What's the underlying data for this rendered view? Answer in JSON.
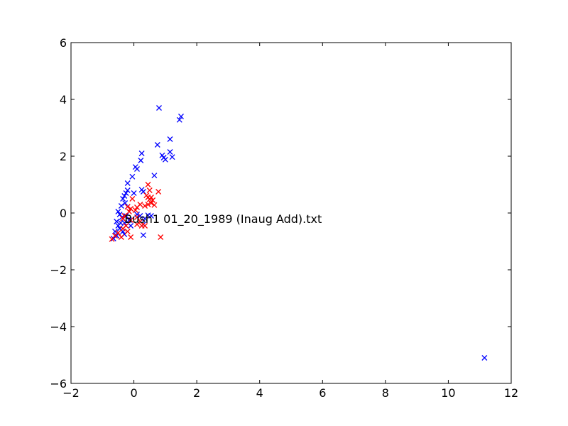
{
  "chart_data": {
    "type": "scatter",
    "title": "",
    "xlabel": "",
    "ylabel": "",
    "xlim": [
      -2,
      12
    ],
    "ylim": [
      -6,
      6
    ],
    "x_ticks": [
      -2,
      0,
      2,
      4,
      6,
      8,
      10,
      12
    ],
    "y_ticks": [
      -6,
      -4,
      -2,
      0,
      2,
      4,
      6
    ],
    "x_tick_labels": [
      "−2",
      "0",
      "2",
      "4",
      "6",
      "8",
      "10",
      "12"
    ],
    "y_tick_labels": [
      "−6",
      "−4",
      "−2",
      "0",
      "2",
      "4",
      "6"
    ],
    "grid": false,
    "legend": "none",
    "marker": "x",
    "series": [
      {
        "color": "#0000ff",
        "points": [
          [
            0.8,
            3.7
          ],
          [
            1.45,
            3.28
          ],
          [
            1.5,
            3.4
          ],
          [
            1.15,
            2.6
          ],
          [
            0.75,
            2.4
          ],
          [
            0.25,
            2.1
          ],
          [
            0.9,
            2.03
          ],
          [
            0.95,
            1.95
          ],
          [
            1.0,
            1.88
          ],
          [
            1.15,
            2.15
          ],
          [
            1.22,
            1.97
          ],
          [
            0.22,
            1.85
          ],
          [
            0.05,
            1.62
          ],
          [
            0.1,
            1.55
          ],
          [
            0.65,
            1.32
          ],
          [
            -0.05,
            1.28
          ],
          [
            -0.2,
            1.05
          ],
          [
            0.25,
            0.82
          ],
          [
            -0.2,
            0.8
          ],
          [
            -0.25,
            0.7
          ],
          [
            -0.3,
            0.6
          ],
          [
            -0.35,
            0.5
          ],
          [
            0.0,
            0.7
          ],
          [
            0.3,
            0.75
          ],
          [
            -0.4,
            0.25
          ],
          [
            -0.28,
            0.35
          ],
          [
            -0.5,
            0.05
          ],
          [
            -0.45,
            -0.05
          ],
          [
            -0.2,
            0.22
          ],
          [
            -0.38,
            -0.15
          ],
          [
            -0.55,
            -0.3
          ],
          [
            -0.5,
            -0.45
          ],
          [
            -0.45,
            -0.55
          ],
          [
            -0.6,
            -0.65
          ],
          [
            -0.55,
            -0.8
          ],
          [
            -0.65,
            -0.9
          ],
          [
            -0.35,
            -0.65
          ],
          [
            -0.3,
            -0.75
          ],
          [
            -0.3,
            -0.35
          ],
          [
            0.3,
            -0.4
          ],
          [
            0.35,
            -0.2
          ],
          [
            0.45,
            -0.08
          ],
          [
            0.55,
            -0.1
          ],
          [
            0.3,
            -0.78
          ],
          [
            -0.25,
            -0.1
          ],
          [
            -0.1,
            -0.45
          ],
          [
            0.1,
            -0.05
          ],
          [
            0.2,
            -0.1
          ],
          [
            -0.15,
            -0.25
          ],
          [
            -0.42,
            -0.35
          ],
          [
            11.15,
            -5.1
          ]
        ]
      },
      {
        "color": "#ff0000",
        "points": [
          [
            0.45,
            1.0
          ],
          [
            0.5,
            0.8
          ],
          [
            0.78,
            0.75
          ],
          [
            0.4,
            0.62
          ],
          [
            0.45,
            0.55
          ],
          [
            0.5,
            0.48
          ],
          [
            0.55,
            0.55
          ],
          [
            0.6,
            0.45
          ],
          [
            0.55,
            0.35
          ],
          [
            0.45,
            0.3
          ],
          [
            0.35,
            0.25
          ],
          [
            0.65,
            0.28
          ],
          [
            0.2,
            0.3
          ],
          [
            0.1,
            0.2
          ],
          [
            -0.05,
            0.5
          ],
          [
            -0.1,
            0.15
          ],
          [
            0.05,
            0.1
          ],
          [
            -0.2,
            0.22
          ],
          [
            -0.15,
            0.05
          ],
          [
            -0.3,
            -0.1
          ],
          [
            -0.35,
            -0.2
          ],
          [
            -0.1,
            -0.25
          ],
          [
            0.1,
            -0.15
          ],
          [
            0.2,
            -0.3
          ],
          [
            0.25,
            -0.45
          ],
          [
            0.1,
            -0.4
          ],
          [
            0.35,
            -0.45
          ],
          [
            0.85,
            -0.85
          ],
          [
            -0.1,
            -0.85
          ],
          [
            -0.2,
            -0.65
          ],
          [
            -0.35,
            -0.55
          ],
          [
            -0.5,
            -0.7
          ],
          [
            -0.6,
            -0.8
          ],
          [
            -0.7,
            -0.92
          ],
          [
            -0.4,
            -0.85
          ],
          [
            -0.25,
            -0.45
          ]
        ]
      }
    ],
    "annotations": [
      {
        "text": "Bush1 01_20_1989 (Inaug Add).txt",
        "x": -0.3,
        "y": -0.2
      }
    ]
  }
}
